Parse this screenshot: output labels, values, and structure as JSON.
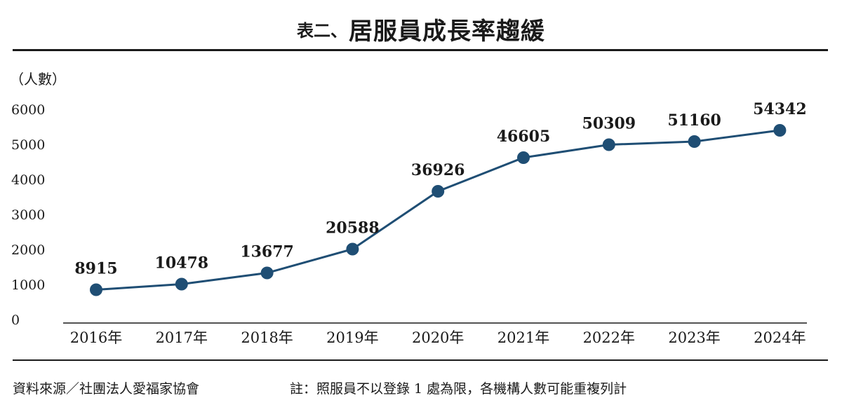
{
  "title": {
    "prefix": "表二、",
    "main": "居服員成長率趨緩"
  },
  "footer": {
    "source": "資料來源／社團法人愛福家協會",
    "note": "註：照服員不以登錄 1 處為限，各機構人數可能重複列計"
  },
  "colors": {
    "series": "#1f4e74",
    "text": "#1a1a1a",
    "rule": "#1a1a1a"
  },
  "chart_data": {
    "type": "line",
    "title": "居服員成長率趨緩",
    "ylabel": "（人數）",
    "xlabel": "",
    "categories": [
      "2016年",
      "2017年",
      "2018年",
      "2019年",
      "2020年",
      "2021年",
      "2022年",
      "2023年",
      "2024年"
    ],
    "y_ticks": [
      "6000",
      "5000",
      "4000",
      "3000",
      "2000",
      "1000",
      "0"
    ],
    "values": [
      8915,
      10478,
      13677,
      20588,
      36926,
      46605,
      50309,
      51160,
      54342
    ],
    "data_labels": [
      "8915",
      "10478",
      "13677",
      "20588",
      "36926",
      "46605",
      "50309",
      "51160",
      "54342"
    ],
    "plotted_levels": [
      850,
      1010,
      1330,
      2010,
      3660,
      4620,
      4990,
      5080,
      5400
    ],
    "ylim": [
      0,
      6000
    ],
    "grid": false,
    "legend": "none"
  }
}
